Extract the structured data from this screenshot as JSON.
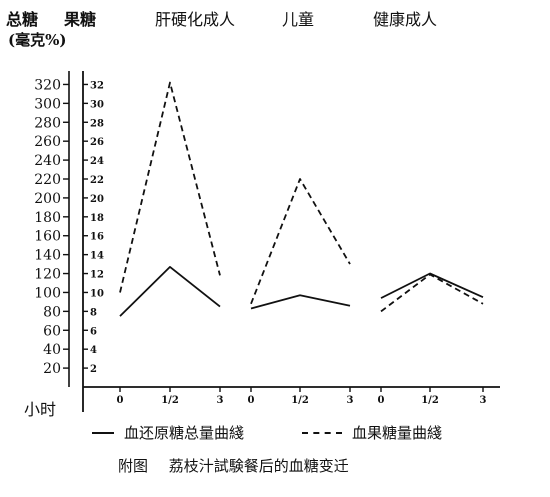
{
  "chart_data": {
    "type": "line",
    "y_left": {
      "label": "总糖",
      "unit": "(毫克%)",
      "ticks": [
        20,
        40,
        60,
        80,
        100,
        120,
        140,
        160,
        180,
        200,
        220,
        240,
        260,
        280,
        300,
        320
      ],
      "range": [
        0,
        330
      ]
    },
    "y_right": {
      "label": "果糖",
      "ticks": [
        2,
        4,
        6,
        8,
        10,
        12,
        14,
        16,
        18,
        20,
        22,
        24,
        26,
        28,
        30,
        32
      ],
      "range": [
        0,
        33
      ]
    },
    "x_axis_label": "小时",
    "x_tick_labels": [
      "0",
      "1/2",
      "3"
    ],
    "panels": [
      {
        "title": "肝硬化成人",
        "x": [
          "0",
          "1/2",
          "3"
        ],
        "series": [
          {
            "name": "血还原糖总量曲綫",
            "style": "solid",
            "values": [
              75,
              127,
              85
            ]
          },
          {
            "name": "血果糖量曲綫",
            "style": "dashed",
            "values": [
              100,
              322,
              118
            ]
          }
        ]
      },
      {
        "title": "儿童",
        "x": [
          "0",
          "1/2",
          "3"
        ],
        "series": [
          {
            "name": "血还原糖总量曲綫",
            "style": "solid",
            "values": [
              83,
              97,
              86
            ]
          },
          {
            "name": "血果糖量曲綫",
            "style": "dashed",
            "values": [
              88,
              220,
              130
            ]
          }
        ]
      },
      {
        "title": "健康成人",
        "x": [
          "0",
          "1/2",
          "3"
        ],
        "series": [
          {
            "name": "血还原糖总量曲綫",
            "style": "solid",
            "values": [
              94,
              120,
              95
            ]
          },
          {
            "name": "血果糖量曲綫",
            "style": "dashed",
            "values": [
              80,
              119,
              88
            ]
          }
        ]
      }
    ]
  },
  "legend": {
    "solid_label": "血还原糖总量曲綫",
    "dashed_label": "血果糖量曲綫"
  },
  "caption": {
    "label": "附图",
    "text": "荔枝汁試験餐后的血糖变迁"
  }
}
